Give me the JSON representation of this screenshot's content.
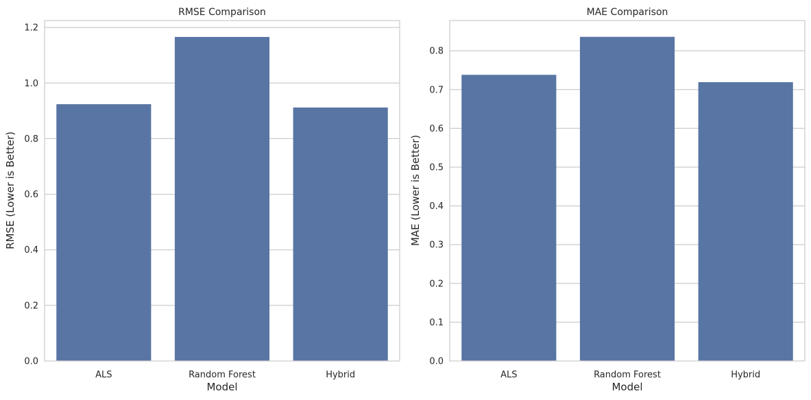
{
  "chart_data": [
    {
      "type": "bar",
      "title": "RMSE Comparison",
      "xlabel": "Model",
      "ylabel": "RMSE (Lower is Better)",
      "categories": [
        "ALS",
        "Random Forest",
        "Hybrid"
      ],
      "values": [
        0.924,
        1.166,
        0.912
      ],
      "ylim": [
        0,
        1.225
      ],
      "yticks": [
        0.0,
        0.2,
        0.4,
        0.6,
        0.8,
        1.0,
        1.2
      ],
      "ytick_labels": [
        "0.0",
        "0.2",
        "0.4",
        "0.6",
        "0.8",
        "1.0",
        "1.2"
      ],
      "grid": true,
      "bar_color": "#5875a4"
    },
    {
      "type": "bar",
      "title": "MAE Comparison",
      "xlabel": "Model",
      "ylabel": "MAE (Lower is Better)",
      "categories": [
        "ALS",
        "Random Forest",
        "Hybrid"
      ],
      "values": [
        0.738,
        0.836,
        0.719
      ],
      "ylim": [
        0,
        0.878
      ],
      "yticks": [
        0.0,
        0.1,
        0.2,
        0.3,
        0.4,
        0.5,
        0.6,
        0.7,
        0.8
      ],
      "ytick_labels": [
        "0.0",
        "0.1",
        "0.2",
        "0.3",
        "0.4",
        "0.5",
        "0.6",
        "0.7",
        "0.8"
      ],
      "grid": true,
      "bar_color": "#5875a4"
    }
  ]
}
